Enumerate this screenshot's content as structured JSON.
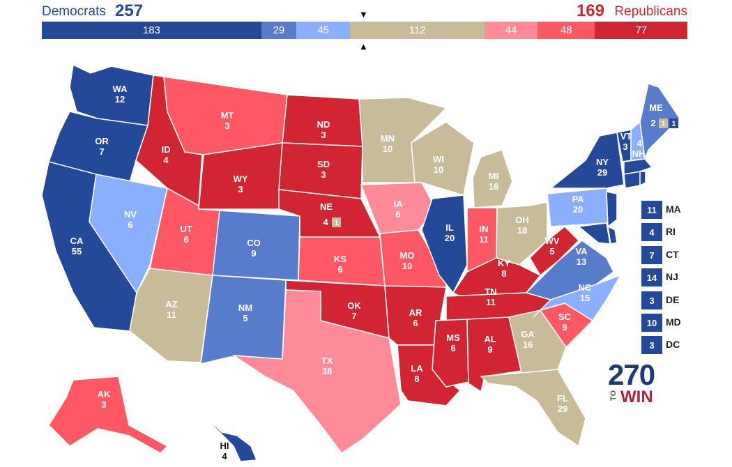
{
  "header": {
    "dem_label": "Democrats",
    "dem_total": "257",
    "rep_total": "169",
    "rep_label": "Republicans",
    "marker_top": "▼",
    "marker_bottom": "▲"
  },
  "bar": [
    {
      "value": 183,
      "label": "183",
      "color": "#244999"
    },
    {
      "value": 29,
      "label": "29",
      "color": "#577ccc"
    },
    {
      "value": 45,
      "label": "45",
      "color": "#8aafff"
    },
    {
      "value": 112,
      "label": "112",
      "color": "#c8bc98"
    },
    {
      "value": 44,
      "label": "44",
      "color": "#ff8b98"
    },
    {
      "value": 48,
      "label": "48",
      "color": "#ff5865"
    },
    {
      "value": 77,
      "label": "77",
      "color": "#d22532"
    }
  ],
  "colors": {
    "safe_d": "#244999",
    "likely_d": "#577ccc",
    "lean_d": "#8aafff",
    "tossup": "#c8bc98",
    "lean_r": "#ff8b98",
    "likely_r": "#ff5865",
    "safe_r": "#d22532"
  },
  "states": {
    "WA": {
      "abbr": "WA",
      "ev": "12"
    },
    "OR": {
      "abbr": "OR",
      "ev": "7"
    },
    "CA": {
      "abbr": "CA",
      "ev": "55"
    },
    "NV": {
      "abbr": "NV",
      "ev": "6"
    },
    "ID": {
      "abbr": "ID",
      "ev": "4"
    },
    "MT": {
      "abbr": "MT",
      "ev": "3"
    },
    "WY": {
      "abbr": "WY",
      "ev": "3"
    },
    "UT": {
      "abbr": "UT",
      "ev": "6"
    },
    "CO": {
      "abbr": "CO",
      "ev": "9"
    },
    "AZ": {
      "abbr": "AZ",
      "ev": "11"
    },
    "NM": {
      "abbr": "NM",
      "ev": "5"
    },
    "ND": {
      "abbr": "ND",
      "ev": "3"
    },
    "SD": {
      "abbr": "SD",
      "ev": "3"
    },
    "NE": {
      "abbr": "NE",
      "ev": "4",
      "cd": "1"
    },
    "KS": {
      "abbr": "KS",
      "ev": "6"
    },
    "OK": {
      "abbr": "OK",
      "ev": "7"
    },
    "TX": {
      "abbr": "TX",
      "ev": "38"
    },
    "MN": {
      "abbr": "MN",
      "ev": "10"
    },
    "IA": {
      "abbr": "IA",
      "ev": "6"
    },
    "MO": {
      "abbr": "MO",
      "ev": "10"
    },
    "AR": {
      "abbr": "AR",
      "ev": "6"
    },
    "LA": {
      "abbr": "LA",
      "ev": "8"
    },
    "WI": {
      "abbr": "WI",
      "ev": "10"
    },
    "IL": {
      "abbr": "IL",
      "ev": "20"
    },
    "MI": {
      "abbr": "MI",
      "ev": "16"
    },
    "IN": {
      "abbr": "IN",
      "ev": "11"
    },
    "OH": {
      "abbr": "OH",
      "ev": "18"
    },
    "KY": {
      "abbr": "KY",
      "ev": "8"
    },
    "TN": {
      "abbr": "TN",
      "ev": "11"
    },
    "MS": {
      "abbr": "MS",
      "ev": "6"
    },
    "AL": {
      "abbr": "AL",
      "ev": "9"
    },
    "GA": {
      "abbr": "GA",
      "ev": "16"
    },
    "FL": {
      "abbr": "FL",
      "ev": "29"
    },
    "SC": {
      "abbr": "SC",
      "ev": "9"
    },
    "NC": {
      "abbr": "NC",
      "ev": "15"
    },
    "VA": {
      "abbr": "VA",
      "ev": "13"
    },
    "WV": {
      "abbr": "WV",
      "ev": "5"
    },
    "PA": {
      "abbr": "PA",
      "ev": "20"
    },
    "NY": {
      "abbr": "NY",
      "ev": "29"
    },
    "VT": {
      "abbr": "VT",
      "ev": "3"
    },
    "NH": {
      "abbr": "NH",
      "ev": "4"
    },
    "ME": {
      "abbr": "ME",
      "ev": "2",
      "cd_tossup": "1",
      "cd_dem": "1"
    },
    "AK": {
      "abbr": "AK",
      "ev": "3"
    },
    "HI": {
      "abbr": "HI",
      "ev": "4"
    }
  },
  "small_states": [
    {
      "ev": "11",
      "abbr": "MA"
    },
    {
      "ev": "4",
      "abbr": "RI"
    },
    {
      "ev": "7",
      "abbr": "CT"
    },
    {
      "ev": "14",
      "abbr": "NJ"
    },
    {
      "ev": "3",
      "abbr": "DE"
    },
    {
      "ev": "10",
      "abbr": "MD"
    },
    {
      "ev": "3",
      "abbr": "DC"
    }
  ],
  "logo": {
    "number": "270",
    "to": "TO",
    "win": "WIN"
  }
}
